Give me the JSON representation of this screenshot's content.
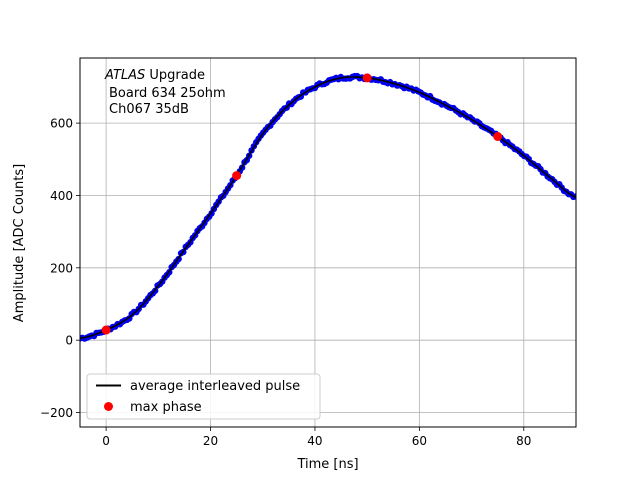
{
  "chart_data": {
    "type": "line",
    "xlabel": "Time [ns]",
    "ylabel": "Amplitude [ADC Counts]",
    "xlim": [
      -5,
      90
    ],
    "ylim": [
      -240,
      780
    ],
    "xticks": [
      0,
      20,
      40,
      60,
      80
    ],
    "yticks": [
      -200,
      0,
      200,
      400,
      600
    ],
    "ytick_labels": [
      "−200",
      "0",
      "200",
      "400",
      "600"
    ],
    "grid": true,
    "legend_position": "lower-left",
    "annotation": {
      "italic": "ATLAS",
      "rest": " Upgrade",
      "line2": "Board 634 25ohm",
      "line3": "Ch067 35dB"
    },
    "series": [
      {
        "name": "average interleaved pulse",
        "kind": "line",
        "color": "#000000",
        "x": [
          -5,
          0,
          5,
          10,
          15,
          20,
          25,
          30,
          35,
          40,
          45,
          50,
          55,
          60,
          65,
          70,
          75,
          80,
          85,
          90
        ],
        "y": [
          5,
          28,
          70,
          150,
          250,
          350,
          455,
          570,
          650,
          700,
          725,
          725,
          710,
          685,
          650,
          610,
          563,
          510,
          450,
          395
        ]
      },
      {
        "name": "",
        "kind": "dots",
        "color": "#0000ee",
        "note": "dense interleaved samples along the average pulse"
      },
      {
        "name": "max phase",
        "kind": "markers",
        "color": "#ff0000",
        "x": [
          0,
          25,
          50,
          75
        ],
        "y": [
          28,
          455,
          725,
          563
        ]
      }
    ]
  }
}
